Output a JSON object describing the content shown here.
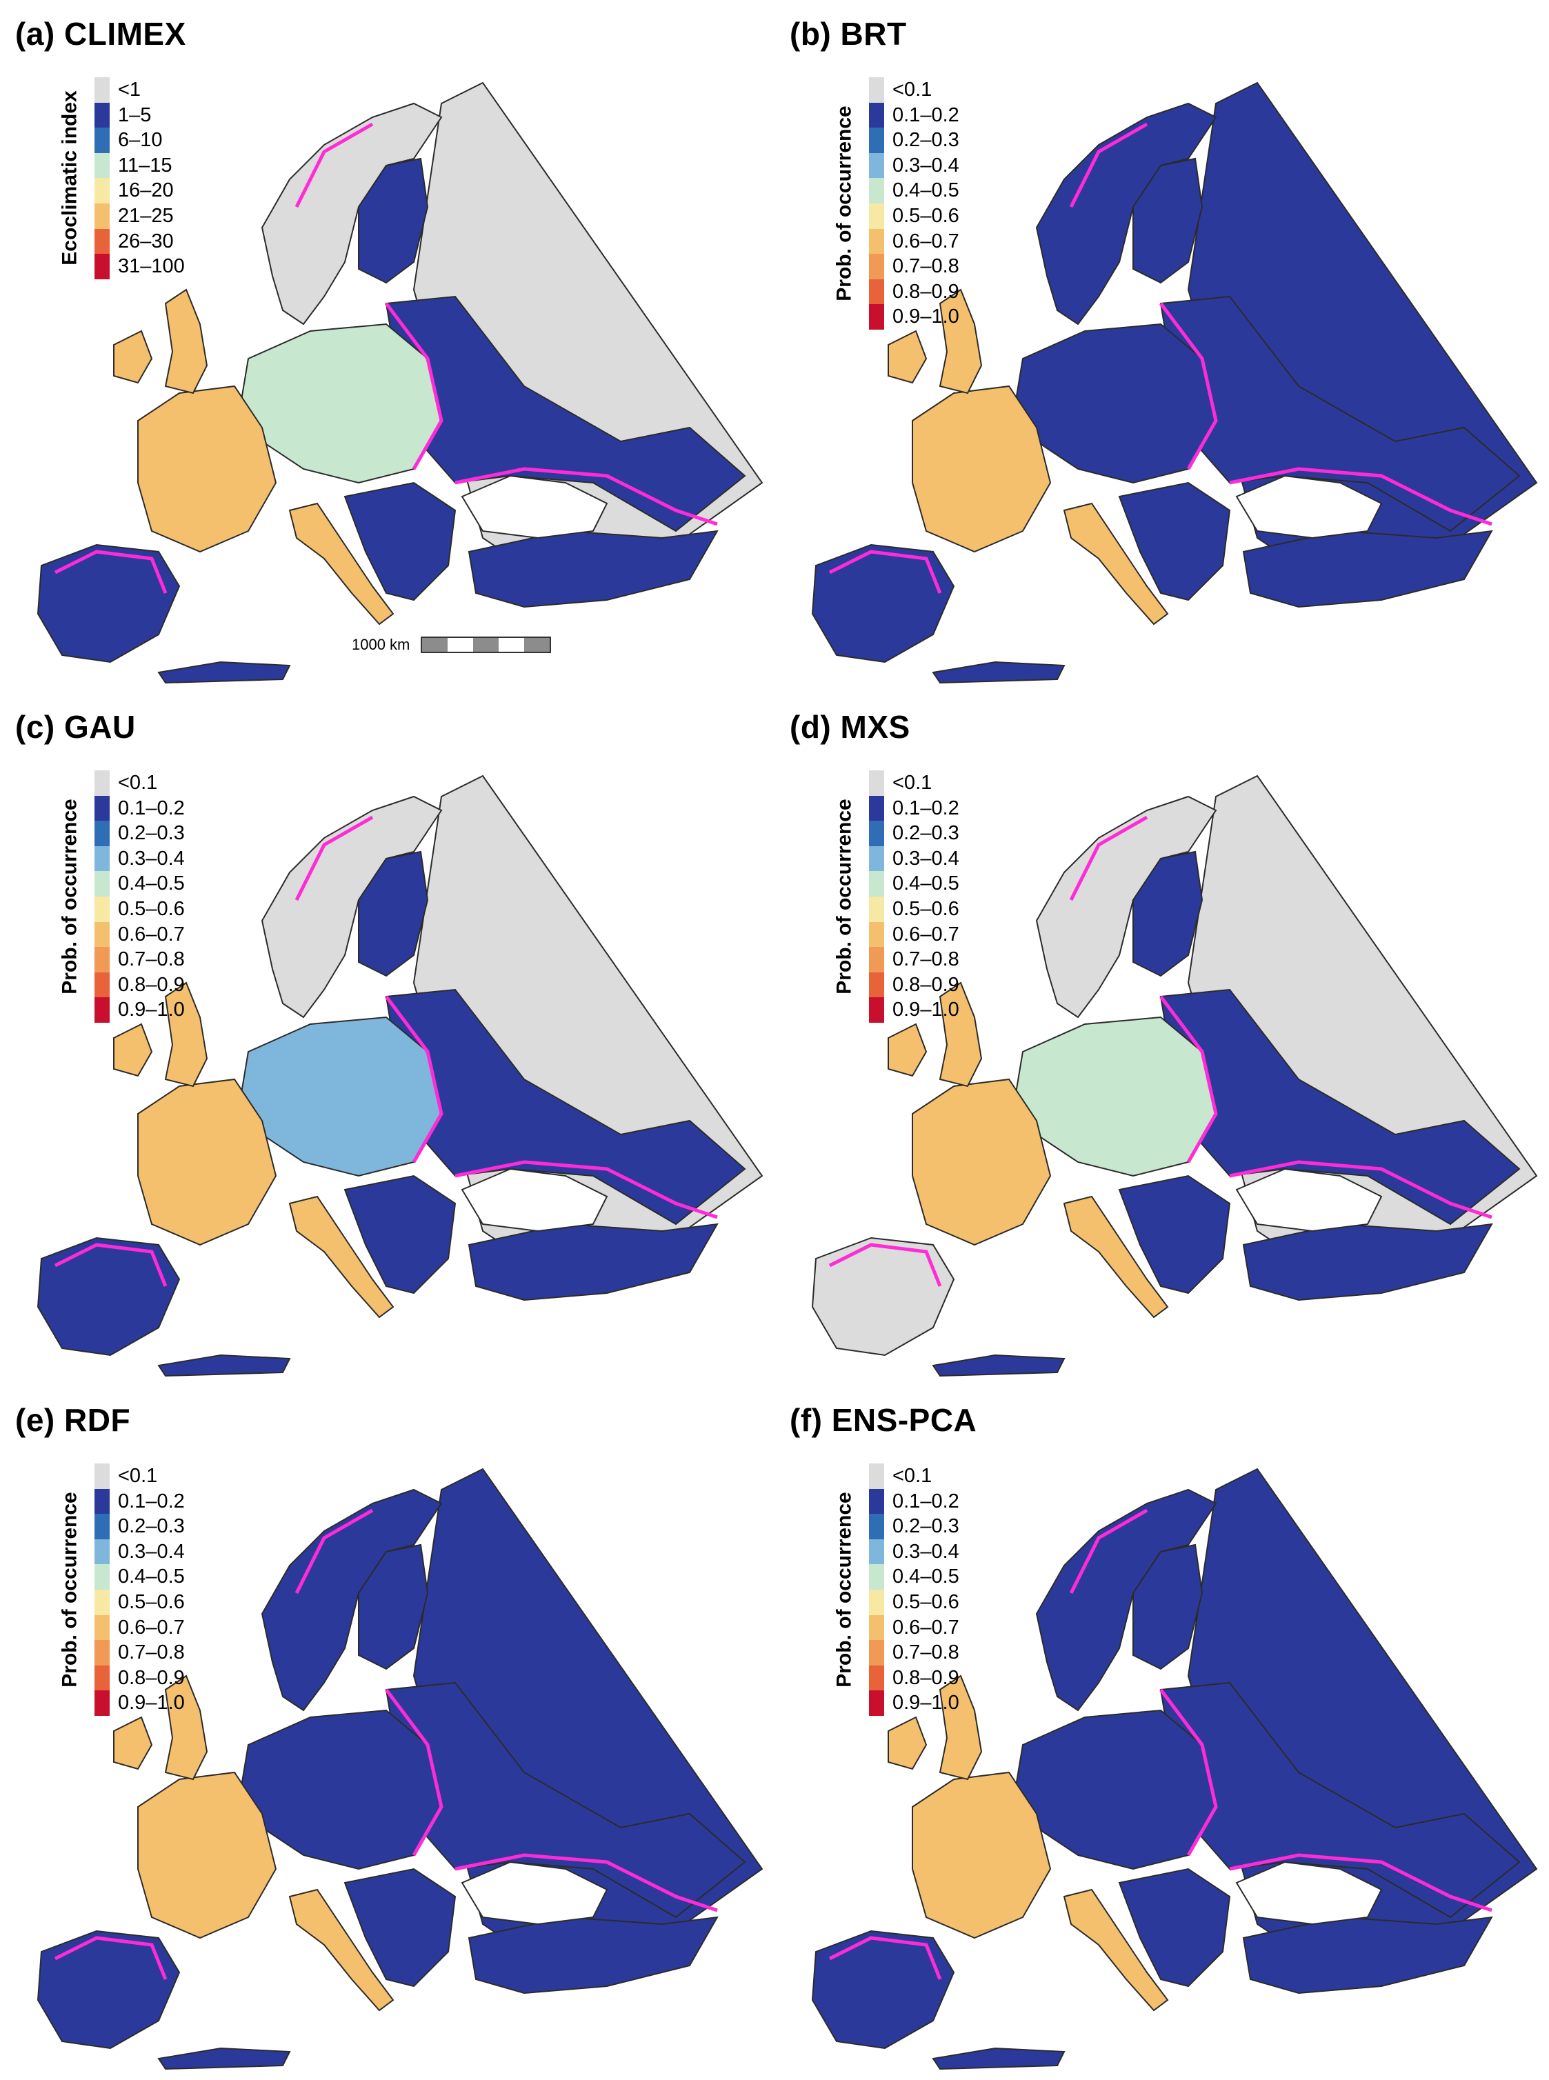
{
  "colors": {
    "background": "#ffffff",
    "no_occurrence": "#dcdcdc",
    "sea": "#ffffff",
    "borders": "#2b2b2b",
    "contour": "#ff2bd6",
    "ramp": [
      "#dcdcdc",
      "#2b3a9a",
      "#2f6db5",
      "#7fb7dc",
      "#c7e7cf",
      "#f7e8a3",
      "#f4c06e",
      "#f09a55",
      "#e8623a",
      "#c8102e"
    ]
  },
  "legends": {
    "ecoclimatic": {
      "title": "Ecoclimatic index",
      "labels": [
        "<1",
        "1–5",
        "6–10",
        "11–15",
        "16–20",
        "21–25",
        "26–30",
        "31–100"
      ],
      "colors": [
        "#dcdcdc",
        "#2b3a9a",
        "#2f6db5",
        "#c7e7cf",
        "#f7e8a3",
        "#f4c06e",
        "#e8623a",
        "#c8102e"
      ]
    },
    "probability": {
      "title": "Prob. of occurrence",
      "labels": [
        "<0.1",
        "0.1–0.2",
        "0.2–0.3",
        "0.3–0.4",
        "0.4–0.5",
        "0.5–0.6",
        "0.6–0.7",
        "0.7–0.8",
        "0.8–0.9",
        "0.9–1.0"
      ],
      "colors": [
        "#dcdcdc",
        "#2b3a9a",
        "#2f6db5",
        "#7fb7dc",
        "#c7e7cf",
        "#f7e8a3",
        "#f4c06e",
        "#f09a55",
        "#e8623a",
        "#c8102e"
      ]
    }
  },
  "panels": [
    {
      "id": "a",
      "title": "(a) CLIMEX",
      "legend": "ecoclimatic",
      "scalebar": true
    },
    {
      "id": "b",
      "title": "(b) BRT",
      "legend": "probability",
      "scalebar": false
    },
    {
      "id": "c",
      "title": "(c) GAU",
      "legend": "probability",
      "scalebar": false
    },
    {
      "id": "d",
      "title": "(d) MXS",
      "legend": "probability",
      "scalebar": false
    },
    {
      "id": "e",
      "title": "(e) RDF",
      "legend": "probability",
      "scalebar": false
    },
    {
      "id": "f",
      "title": "(f) ENS-PCA",
      "legend": "probability",
      "scalebar": false
    }
  ],
  "panel_styles": {
    "a": {
      "west": "#f4c06e",
      "central": "#c7e7cf",
      "east": "#2b3a9a",
      "north": "#dcdcdc",
      "iberia": "#2b3a9a"
    },
    "b": {
      "west": "#f4c06e",
      "central": "#2b3a9a",
      "east": "#2b3a9a",
      "north": "#2b3a9a",
      "iberia": "#2b3a9a"
    },
    "c": {
      "west": "#f4c06e",
      "central": "#7fb7dc",
      "east": "#2b3a9a",
      "north": "#dcdcdc",
      "iberia": "#2b3a9a"
    },
    "d": {
      "west": "#f4c06e",
      "central": "#c7e7cf",
      "east": "#2b3a9a",
      "north": "#dcdcdc",
      "iberia": "#dcdcdc"
    },
    "e": {
      "west": "#f4c06e",
      "central": "#2b3a9a",
      "east": "#2b3a9a",
      "north": "#2b3a9a",
      "iberia": "#2b3a9a"
    },
    "f": {
      "west": "#f4c06e",
      "central": "#2b3a9a",
      "east": "#2b3a9a",
      "north": "#2b3a9a",
      "iberia": "#2b3a9a"
    }
  },
  "scalebar": {
    "label": "1000 km"
  }
}
